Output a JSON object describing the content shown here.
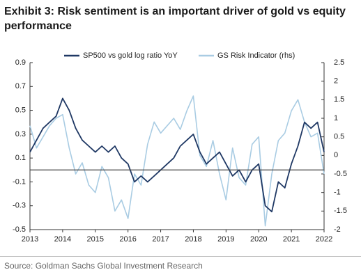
{
  "chart_data": {
    "type": "line",
    "title": "Exhibit 3: Risk sentiment is an important driver of gold vs equity performance",
    "source": "Source: Goldman Sachs Global Investment Research",
    "x": [
      2013,
      2013.2,
      2013.4,
      2013.6,
      2013.8,
      2014,
      2014.2,
      2014.4,
      2014.6,
      2014.8,
      2015,
      2015.2,
      2015.4,
      2015.6,
      2015.8,
      2016,
      2016.2,
      2016.4,
      2016.6,
      2016.8,
      2017,
      2017.2,
      2017.4,
      2017.6,
      2017.8,
      2018,
      2018.2,
      2018.4,
      2018.6,
      2018.8,
      2019,
      2019.2,
      2019.4,
      2019.6,
      2019.8,
      2020,
      2020.2,
      2020.4,
      2020.6,
      2020.8,
      2021,
      2021.2,
      2021.4,
      2021.6,
      2021.8,
      2022
    ],
    "series": [
      {
        "name": "SP500 vs gold log ratio YoY",
        "color": "#1f3864",
        "axis": "y",
        "values": [
          0.15,
          0.25,
          0.35,
          0.4,
          0.45,
          0.6,
          0.5,
          0.35,
          0.25,
          0.2,
          0.15,
          0.2,
          0.15,
          0.2,
          0.1,
          0.05,
          -0.1,
          -0.05,
          -0.1,
          -0.05,
          0.0,
          0.05,
          0.1,
          0.2,
          0.25,
          0.3,
          0.15,
          0.05,
          0.1,
          0.15,
          0.05,
          -0.05,
          0.0,
          -0.1,
          0.0,
          0.05,
          -0.3,
          -0.35,
          -0.1,
          -0.15,
          0.05,
          0.2,
          0.4,
          0.35,
          0.4,
          0.15
        ]
      },
      {
        "name": "GS Risk Indicator (rhs)",
        "color": "#a9cce3",
        "axis": "y2",
        "values": [
          0.8,
          0.2,
          0.5,
          0.8,
          1.0,
          1.1,
          0.2,
          -0.5,
          -0.2,
          -0.8,
          -1.0,
          -0.3,
          -0.6,
          -1.5,
          -1.2,
          -1.7,
          -0.5,
          -0.8,
          0.3,
          0.9,
          0.6,
          0.8,
          1.0,
          0.7,
          1.2,
          1.6,
          0.0,
          -0.3,
          0.4,
          -0.5,
          -1.2,
          0.2,
          -0.6,
          -0.8,
          0.3,
          0.5,
          -1.9,
          -0.5,
          0.4,
          0.6,
          1.2,
          1.5,
          0.9,
          0.5,
          0.6,
          -0.5
        ]
      }
    ],
    "xlim": [
      2013,
      2022
    ],
    "xticks": [
      2013,
      2014,
      2015,
      2016,
      2017,
      2018,
      2019,
      2020,
      2021,
      2022
    ],
    "ylim": [
      -0.5,
      0.9
    ],
    "yticks": [
      -0.5,
      -0.3,
      -0.1,
      0.1,
      0.3,
      0.5,
      0.7,
      0.9
    ],
    "y2lim": [
      -2,
      2.5
    ],
    "y2ticks": [
      -2,
      -1.5,
      -1,
      -0.5,
      0,
      0.5,
      1,
      1.5,
      2,
      2.5
    ],
    "hline": 0,
    "legend": "top"
  }
}
